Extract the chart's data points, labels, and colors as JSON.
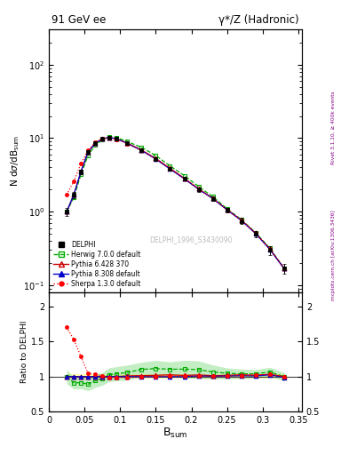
{
  "title_left": "91 GeV ee",
  "title_right": "γ*/Z (Hadronic)",
  "ylabel_main": "N dσ/dB_sum",
  "ylabel_ratio": "Ratio to DELPHI",
  "xlabel": "B_sum",
  "right_label_top": "Rivet 3.1.10, ≥ 400k events",
  "right_label_bottom": "mcplots.cern.ch [arXiv:1306.3436]",
  "watermark": "DELPHI_1996_S3430090",
  "bsum_centers": [
    0.025,
    0.035,
    0.045,
    0.055,
    0.065,
    0.075,
    0.085,
    0.095,
    0.11,
    0.13,
    0.15,
    0.17,
    0.19,
    0.21,
    0.23,
    0.25,
    0.27,
    0.29,
    0.31,
    0.33
  ],
  "delphi_y": [
    1.0,
    1.7,
    3.5,
    6.5,
    8.5,
    9.8,
    10.2,
    9.8,
    8.5,
    6.8,
    5.2,
    3.8,
    2.8,
    2.0,
    1.5,
    1.05,
    0.75,
    0.5,
    0.3,
    0.17
  ],
  "delphi_err": [
    0.12,
    0.18,
    0.25,
    0.35,
    0.4,
    0.45,
    0.45,
    0.45,
    0.38,
    0.3,
    0.25,
    0.2,
    0.16,
    0.12,
    0.1,
    0.08,
    0.07,
    0.05,
    0.04,
    0.025
  ],
  "herwig_y": [
    1.0,
    1.55,
    3.2,
    5.8,
    8.0,
    9.5,
    10.5,
    10.2,
    9.0,
    7.5,
    5.8,
    4.2,
    3.1,
    2.2,
    1.6,
    1.1,
    0.78,
    0.52,
    0.32,
    0.17
  ],
  "pythia6_y": [
    1.0,
    1.7,
    3.5,
    6.5,
    8.5,
    9.8,
    10.2,
    9.8,
    8.6,
    6.9,
    5.3,
    3.9,
    2.85,
    2.05,
    1.52,
    1.07,
    0.77,
    0.51,
    0.31,
    0.17
  ],
  "pythia8_y": [
    1.0,
    1.7,
    3.5,
    6.5,
    8.5,
    9.8,
    10.2,
    9.8,
    8.5,
    6.8,
    5.2,
    3.8,
    2.8,
    2.02,
    1.51,
    1.06,
    0.76,
    0.505,
    0.308,
    0.168
  ],
  "sherpa_y": [
    1.7,
    2.6,
    4.5,
    6.8,
    8.8,
    9.9,
    10.1,
    9.7,
    8.4,
    6.8,
    5.2,
    3.85,
    2.82,
    2.02,
    1.51,
    1.06,
    0.76,
    0.51,
    0.31,
    0.17
  ],
  "herwig_band_lo": [
    0.9,
    1.4,
    2.9,
    5.2,
    7.2,
    8.6,
    9.5,
    9.2,
    8.1,
    6.8,
    5.2,
    3.8,
    2.75,
    1.95,
    1.45,
    1.02,
    0.73,
    0.49,
    0.3,
    0.16
  ],
  "herwig_band_hi": [
    1.1,
    1.7,
    3.5,
    6.4,
    8.8,
    10.4,
    11.5,
    11.2,
    9.9,
    8.2,
    6.4,
    4.6,
    3.45,
    2.45,
    1.75,
    1.18,
    0.83,
    0.55,
    0.34,
    0.18
  ],
  "colors": {
    "delphi": "#000000",
    "herwig": "#00aa00",
    "pythia6": "#cc0000",
    "pythia8": "#0000cc",
    "sherpa": "#ff0000"
  },
  "bg_color": "#ffffff",
  "ylim_main": [
    0.08,
    300
  ],
  "ylim_ratio": [
    0.5,
    2.2
  ],
  "xlim": [
    0.0,
    0.355
  ]
}
